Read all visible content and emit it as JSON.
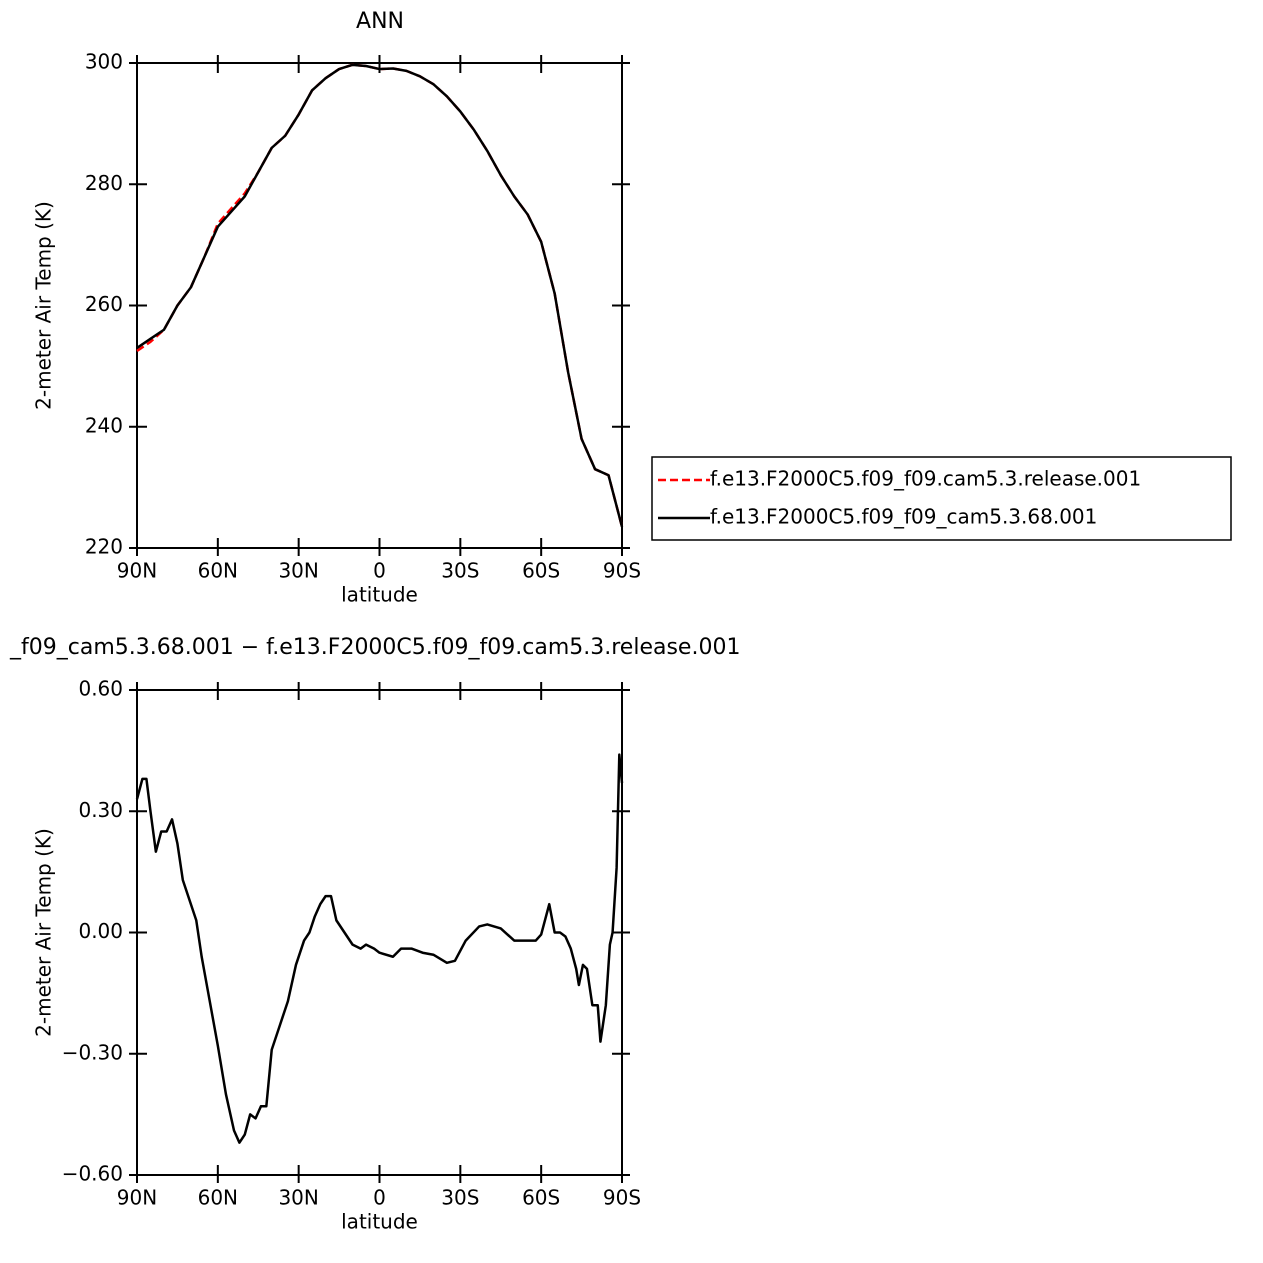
{
  "chart_data": [
    {
      "type": "line",
      "title": "ANN",
      "xlabel": "latitude",
      "ylabel": "2-meter Air Temp (K)",
      "xlim": [
        90,
        -90
      ],
      "xticks": [
        {
          "value": 90,
          "label": "90N"
        },
        {
          "value": 60,
          "label": "60N"
        },
        {
          "value": 30,
          "label": "30N"
        },
        0,
        {
          "value": -30,
          "label": "30S"
        },
        {
          "value": -60,
          "label": "60S"
        },
        {
          "value": -90,
          "label": "90S"
        }
      ],
      "ylim": [
        220,
        300
      ],
      "yticks": [
        220,
        240,
        260,
        280,
        300
      ],
      "legend": "outside-right",
      "x": [
        90,
        85,
        80,
        75,
        70,
        65,
        60,
        55,
        50,
        45,
        40,
        35,
        30,
        25,
        20,
        15,
        10,
        5,
        0,
        -5,
        -10,
        -15,
        -20,
        -25,
        -30,
        -35,
        -40,
        -45,
        -50,
        -55,
        -60,
        -65,
        -70,
        -75,
        -80,
        -85,
        -90
      ],
      "series": [
        {
          "name": "f.e13.F2000C5.f09_f09.cam5.3.release.001",
          "color": "#ff0000",
          "dashed": true,
          "values": [
            252.5,
            254,
            256,
            260,
            263,
            268,
            273.5,
            276,
            278.5,
            282,
            286,
            288,
            291.5,
            295.5,
            297.5,
            299,
            299.7,
            299.5,
            299,
            299.1,
            298.7,
            297.8,
            296.5,
            294.5,
            292,
            289,
            285.5,
            281.5,
            278,
            275,
            270.5,
            262,
            249,
            238,
            233,
            232,
            223.5
          ]
        },
        {
          "name": "f.e13.F2000C5.f09_f09_cam5.3.68.001",
          "color": "#000000",
          "dashed": false,
          "values": [
            253,
            254.5,
            256,
            260,
            263,
            268,
            273,
            275.5,
            278,
            282,
            286,
            288,
            291.5,
            295.5,
            297.5,
            299,
            299.7,
            299.5,
            299,
            299.1,
            298.7,
            297.8,
            296.5,
            294.5,
            292,
            289,
            285.5,
            281.5,
            278,
            275,
            270.5,
            262,
            249,
            238,
            233,
            232,
            223.5
          ]
        }
      ]
    },
    {
      "type": "line",
      "title": "_f09_cam5.3.68.001 − f.e13.F2000C5.f09_f09.cam5.3.release.001",
      "xlabel": "latitude",
      "ylabel": "2-meter Air Temp (K)",
      "xlim": [
        90,
        -90
      ],
      "xticks": [
        {
          "value": 90,
          "label": "90N"
        },
        {
          "value": 60,
          "label": "60N"
        },
        {
          "value": 30,
          "label": "30N"
        },
        0,
        {
          "value": -30,
          "label": "30S"
        },
        {
          "value": -60,
          "label": "60S"
        },
        {
          "value": -90,
          "label": "90S"
        }
      ],
      "ylim": [
        -0.6,
        0.6
      ],
      "yticks": [
        {
          "value": -0.6,
          "label": "−0.60"
        },
        {
          "value": -0.3,
          "label": "−0.30"
        },
        {
          "value": 0,
          "label": "0.00"
        },
        {
          "value": 0.3,
          "label": "0.30"
        },
        {
          "value": 0.6,
          "label": "0.60"
        }
      ],
      "x": [
        90,
        88,
        86.5,
        85,
        83,
        81,
        79,
        77,
        75,
        73,
        71,
        68,
        66,
        63,
        60,
        57,
        54,
        52,
        50,
        48,
        46,
        44,
        42,
        40,
        37,
        34,
        31,
        28,
        26,
        24,
        22,
        20,
        18,
        16,
        13,
        10,
        7,
        5,
        2,
        0,
        -5,
        -8,
        -12,
        -16,
        -20,
        -25,
        -28,
        -32,
        -37,
        -40,
        -45,
        -50,
        -55,
        -58,
        -60,
        -63,
        -65,
        -67,
        -69,
        -71,
        -73,
        -74,
        -75.5,
        -77,
        -79,
        -81,
        -82,
        -84,
        -85.5,
        -86.5,
        -88,
        -89,
        -90
      ],
      "series": [
        {
          "color": "#000000",
          "dashed": false,
          "values": [
            0.33,
            0.38,
            0.38,
            0.3,
            0.2,
            0.25,
            0.25,
            0.28,
            0.22,
            0.13,
            0.09,
            0.03,
            -0.06,
            -0.17,
            -0.28,
            -0.4,
            -0.49,
            -0.52,
            -0.5,
            -0.45,
            -0.46,
            -0.43,
            -0.43,
            -0.29,
            -0.23,
            -0.17,
            -0.08,
            -0.02,
            0.0,
            0.04,
            0.07,
            0.09,
            0.09,
            0.03,
            0.0,
            -0.03,
            -0.04,
            -0.03,
            -0.04,
            -0.05,
            -0.06,
            -0.04,
            -0.04,
            -0.05,
            -0.055,
            -0.075,
            -0.07,
            -0.02,
            0.015,
            0.02,
            0.01,
            -0.02,
            -0.02,
            -0.02,
            -0.005,
            0.07,
            0.0,
            0.0,
            -0.01,
            -0.04,
            -0.09,
            -0.13,
            -0.08,
            -0.09,
            -0.18,
            -0.18,
            -0.27,
            -0.18,
            -0.03,
            0.0,
            0.16,
            0.44,
            0.37
          ]
        }
      ]
    }
  ]
}
